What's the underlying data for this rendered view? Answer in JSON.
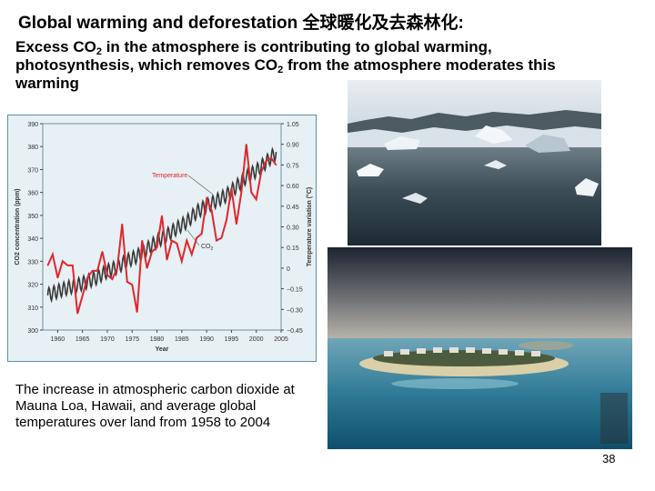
{
  "slide": {
    "title_en": "Global warming and deforestation",
    "title_zh": "全球暖化及去森林化",
    "title_colon": ":",
    "intro_1a": "Excess CO",
    "intro_1sub": "2",
    "intro_1b": " in the atmosphere is contributing to global warming,",
    "intro_2a": "photosynthesis, which removes CO",
    "intro_2sub": "2",
    "intro_2b": " from the atmosphere moderates this",
    "intro_3": "warming",
    "caption": "The increase in atmospheric carbon dioxide at Mauna Loa, Hawaii, and average global temperatures over land from 1958 to 2004",
    "page_number": "38"
  },
  "photos": {
    "ice": "glacier-icebergs-photo",
    "island": "island-resort-photo"
  },
  "colors": {
    "temperature_line": "#e0262d",
    "co2_line": "#3a3a3a",
    "chart_bg": "#e7f0f4",
    "chart_border": "#5f8fa8"
  },
  "chart_data": {
    "type": "line",
    "title": "",
    "xlabel": "Year",
    "ylabel_left": "CO2 concentration (ppm)",
    "ylabel_right": "Temperature variation (°C)",
    "xlim": [
      1957,
      2005
    ],
    "ylim_left": [
      300,
      390
    ],
    "ylim_right": [
      -0.45,
      1.05
    ],
    "x_ticks": [
      "1960",
      "1965",
      "1970",
      "1975",
      "1980",
      "1985",
      "1990",
      "1995",
      "2000",
      "2005"
    ],
    "left_ticks": [
      "300",
      "310",
      "320",
      "330",
      "340",
      "350",
      "360",
      "370",
      "380",
      "390"
    ],
    "right_ticks": [
      "−0.45",
      "−0.30",
      "−0.15",
      "0",
      "0.15",
      "0.30",
      "0.45",
      "0.60",
      "0.75",
      "0.90",
      "1.05"
    ],
    "series": [
      {
        "name": "Temperature",
        "axis": "right",
        "x": [
          1958,
          1959,
          1960,
          1961,
          1962,
          1963,
          1964,
          1965,
          1966,
          1967,
          1968,
          1969,
          1970,
          1971,
          1972,
          1973,
          1974,
          1975,
          1976,
          1977,
          1978,
          1979,
          1980,
          1981,
          1982,
          1983,
          1984,
          1985,
          1986,
          1987,
          1988,
          1989,
          1990,
          1991,
          1992,
          1993,
          1994,
          1995,
          1996,
          1997,
          1998,
          1999,
          2000,
          2001,
          2002,
          2003,
          2004
        ],
        "y": [
          0.02,
          0.1,
          -0.07,
          0.05,
          0.02,
          0.02,
          -0.33,
          -0.2,
          -0.07,
          -0.02,
          -0.02,
          0.12,
          -0.05,
          -0.08,
          0.0,
          0.32,
          -0.1,
          -0.12,
          -0.32,
          0.2,
          0.0,
          0.12,
          0.15,
          0.38,
          0.06,
          0.2,
          0.18,
          0.05,
          0.2,
          0.1,
          0.22,
          0.25,
          0.5,
          0.42,
          0.2,
          0.22,
          0.35,
          0.58,
          0.32,
          0.55,
          0.9,
          0.55,
          0.5,
          0.7,
          0.78,
          0.8,
          0.75
        ]
      },
      {
        "name": "CO",
        "name_sub": "2",
        "axis": "left",
        "x": [
          1958,
          1960,
          1962,
          1964,
          1966,
          1968,
          1970,
          1972,
          1974,
          1976,
          1978,
          1980,
          1982,
          1984,
          1986,
          1988,
          1990,
          1992,
          1994,
          1996,
          1998,
          2000,
          2002,
          2004
        ],
        "y": [
          315.3,
          316.9,
          318.4,
          319.6,
          321.1,
          323.0,
          325.7,
          327.5,
          330.2,
          332.2,
          335.4,
          338.7,
          341.4,
          344.4,
          347.2,
          351.5,
          354.2,
          356.4,
          358.8,
          362.6,
          366.7,
          369.4,
          373.2,
          377.5
        ]
      }
    ],
    "legend": "inline labels"
  }
}
